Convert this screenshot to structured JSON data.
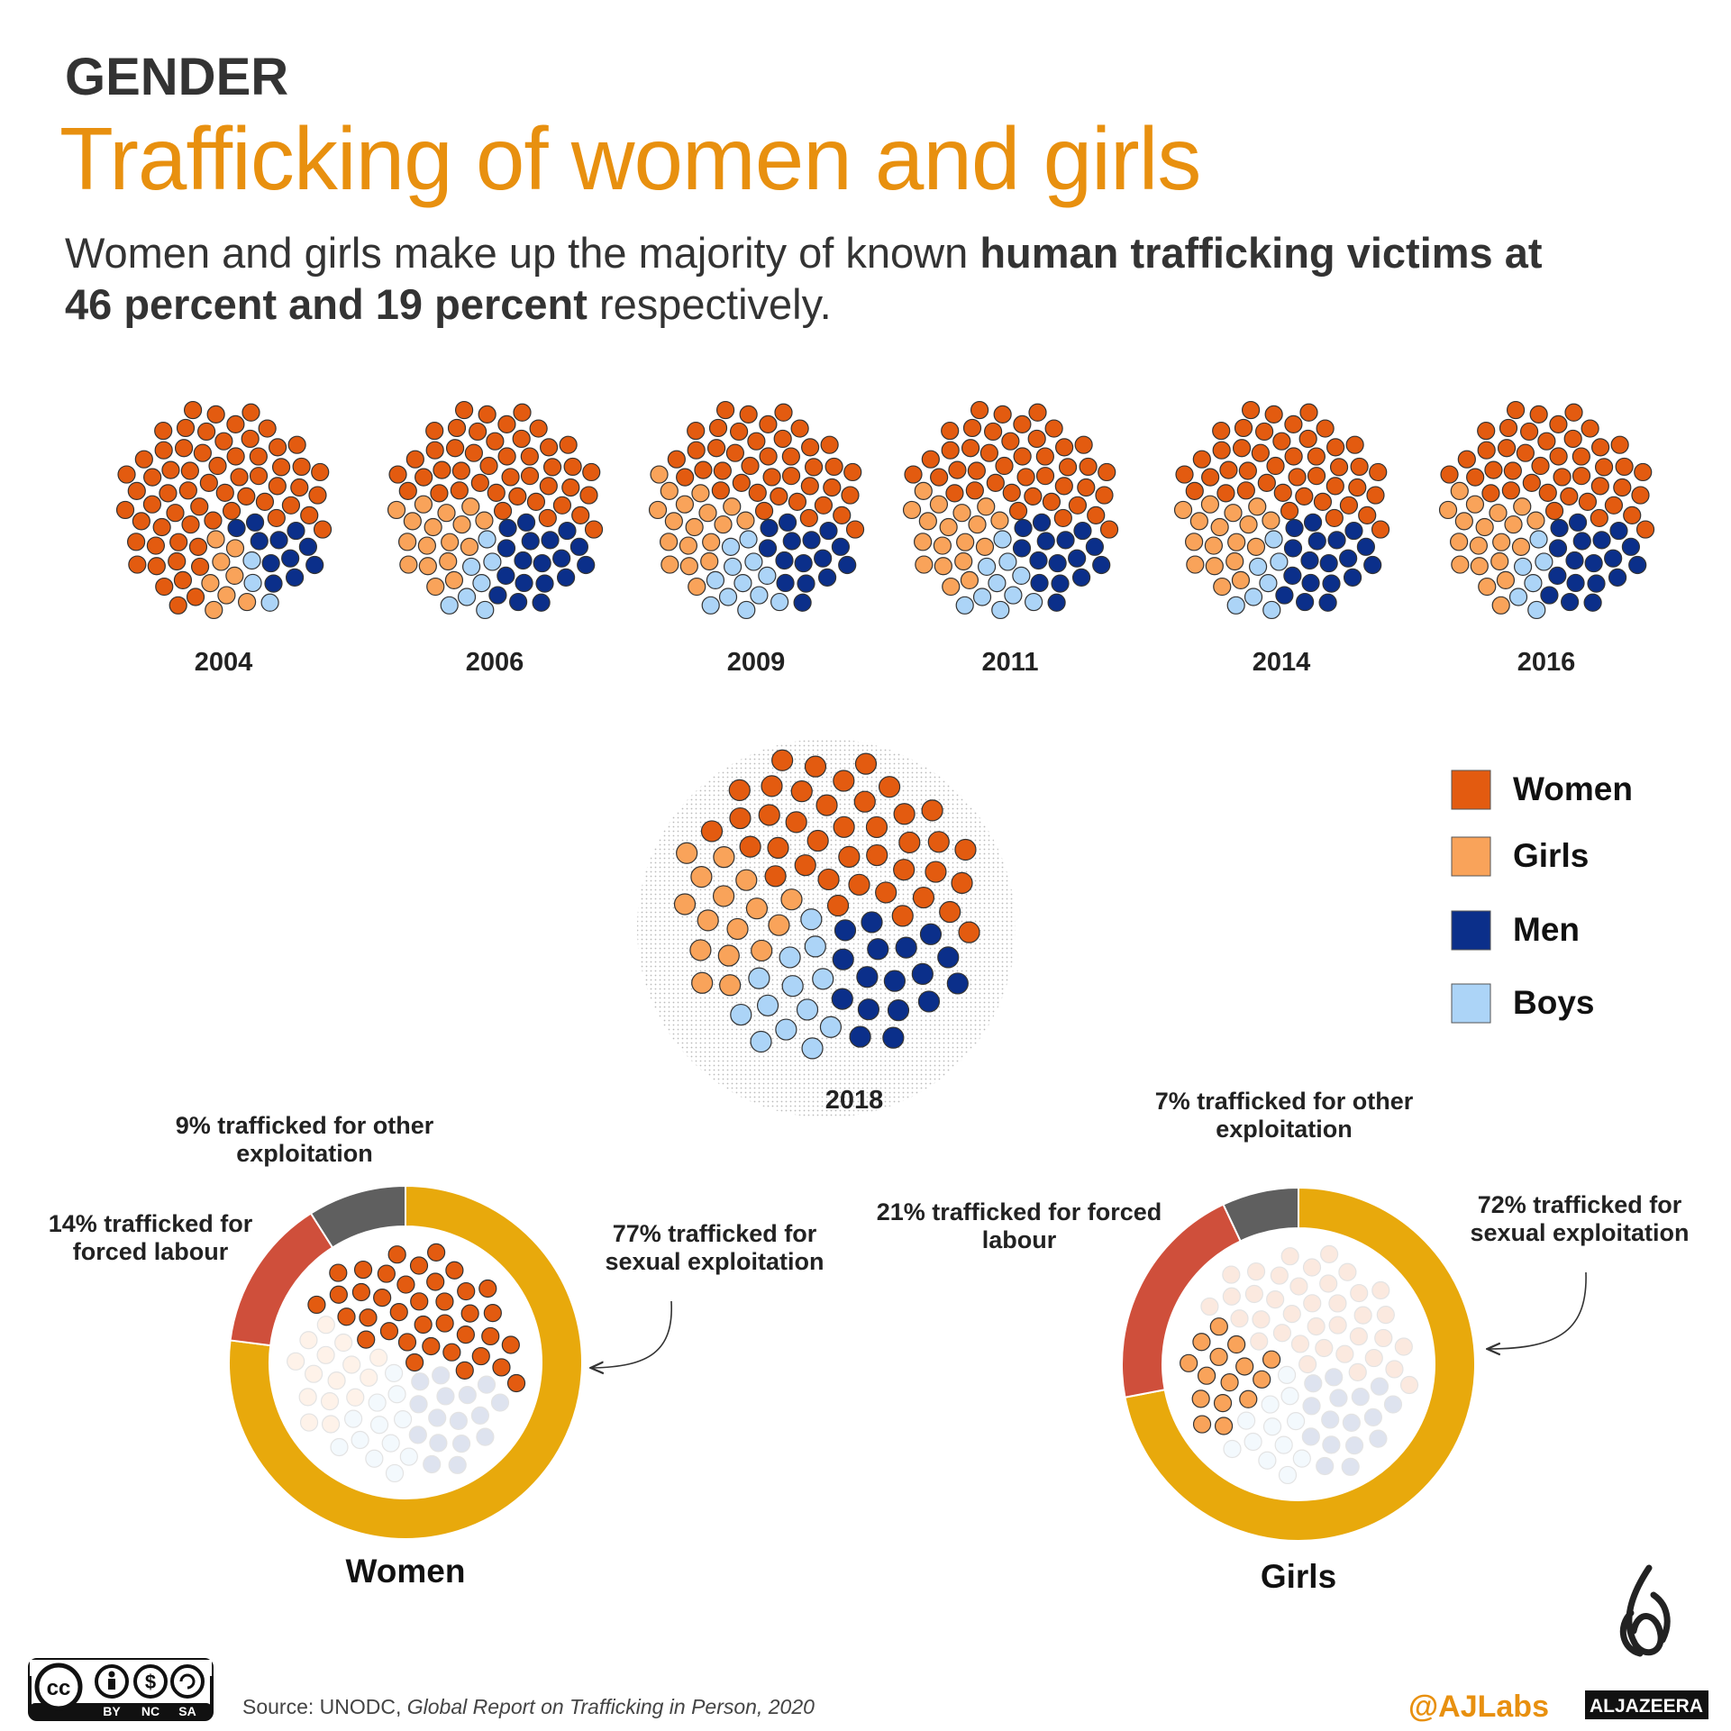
{
  "header": {
    "kicker": "GENDER",
    "title": "Trafficking of women and girls",
    "subtitle": [
      "Women and girls make up the majority of known ",
      "human trafficking victims at 46 percent and 19 percent",
      " respectively."
    ]
  },
  "chart_data": [
    {
      "type": "dot",
      "categories": [
        "2004",
        "2006",
        "2009",
        "2011",
        "2014",
        "2016",
        "2018"
      ],
      "series": [
        {
          "name": "Women",
          "color": "#e35b10",
          "values": [
            74,
            51,
            47,
            49,
            51,
            49,
            46
          ]
        },
        {
          "name": "Girls",
          "color": "#f9a35a",
          "values": [
            10,
            20,
            21,
            21,
            20,
            23,
            19
          ]
        },
        {
          "name": "Men",
          "color": "#0b2f8a",
          "values": [
            13,
            21,
            18,
            18,
            21,
            21,
            20
          ]
        },
        {
          "name": "Boys",
          "color": "#acd4f7",
          "values": [
            3,
            8,
            14,
            12,
            8,
            7,
            15
          ]
        }
      ]
    },
    {
      "type": "pie",
      "title": "Women",
      "values": [
        77,
        14,
        9
      ],
      "value_labels": [
        "77% trafficked for sexual exploitation",
        "14% trafficked for forced labour",
        "9% trafficked for other exploitation"
      ],
      "colors": [
        "#e8a90c",
        "#cf4f3b",
        "#5f5f5f"
      ]
    },
    {
      "type": "pie",
      "title": "Girls",
      "values": [
        72,
        21,
        7
      ],
      "value_labels": [
        "72% trafficked for sexual exploitation",
        "21% trafficked for forced labour",
        "7% trafficked for other exploitation"
      ],
      "colors": [
        "#e8a90c",
        "#cf4f3b",
        "#5f5f5f"
      ]
    }
  ],
  "footer": {
    "license": [
      "BY",
      "NC",
      "SA"
    ],
    "source": "Source: UNODC, ",
    "source_title": "Global Report on Trafficking in Person, 2020",
    "handle": "@AJLabs",
    "brand": "ALJAZEERA"
  }
}
